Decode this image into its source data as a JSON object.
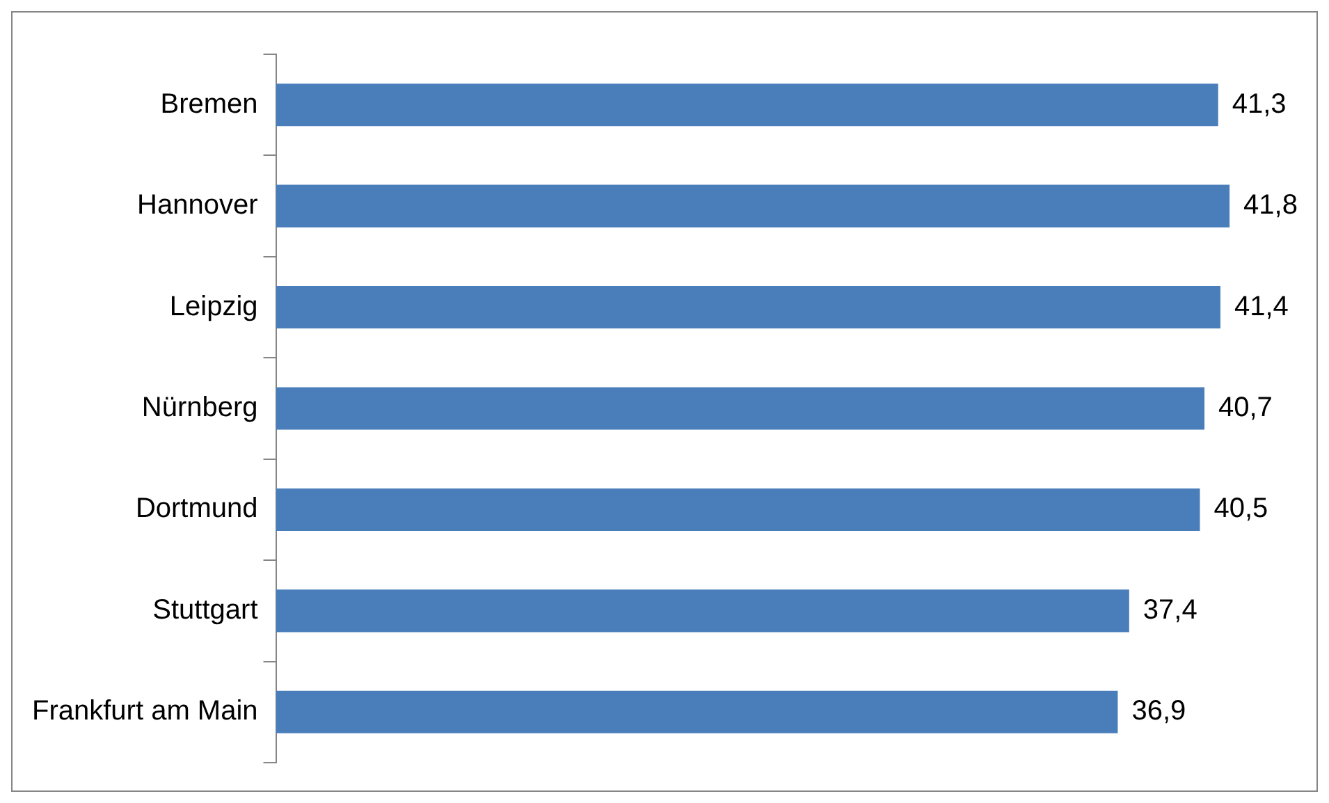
{
  "chart_data": {
    "type": "bar",
    "orientation": "horizontal",
    "categories": [
      "Bremen",
      "Hannover",
      "Leipzig",
      "Nürnberg",
      "Dortmund",
      "Stuttgart",
      "Frankfurt am Main"
    ],
    "values": [
      41.3,
      41.8,
      41.4,
      40.7,
      40.5,
      37.4,
      36.9
    ],
    "value_labels": [
      "41,3",
      "41,8",
      "41,4",
      "40,7",
      "40,5",
      "37,4",
      "36,9"
    ],
    "color": "#4a7ebb",
    "tick_labels": "y",
    "grid": false,
    "legend": false
  }
}
